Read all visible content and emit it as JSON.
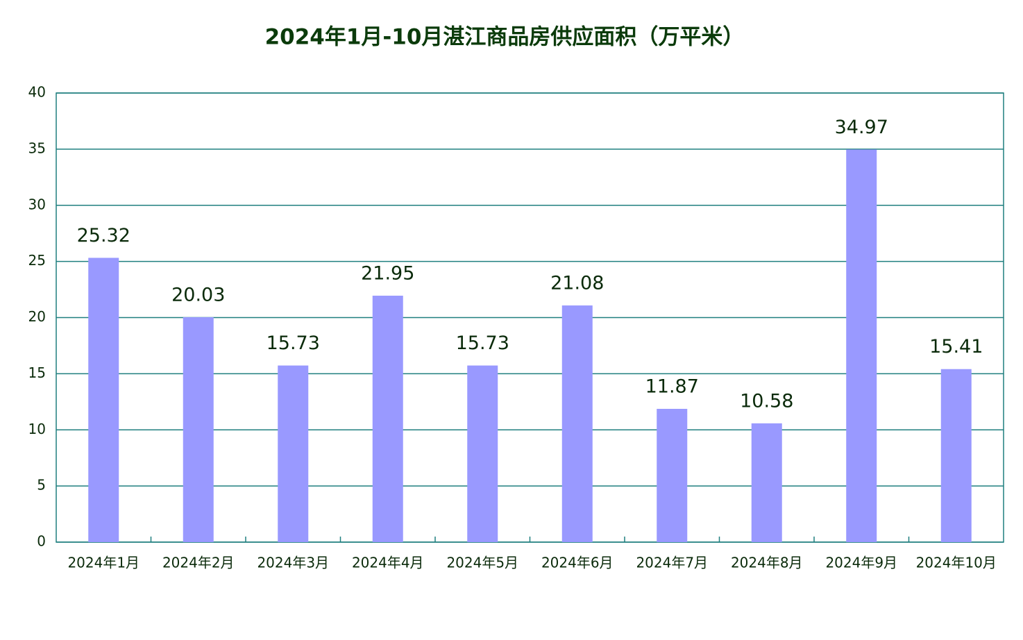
{
  "chart_data": {
    "type": "bar",
    "title": "2024年1月-10月湛江商品房供应面积（万平米）",
    "categories": [
      "2024年1月",
      "2024年2月",
      "2024年3月",
      "2024年4月",
      "2024年5月",
      "2024年6月",
      "2024年7月",
      "2024年8月",
      "2024年9月",
      "2024年10月"
    ],
    "values": [
      25.32,
      20.03,
      15.73,
      21.95,
      15.73,
      21.08,
      11.87,
      10.58,
      34.97,
      15.41
    ],
    "color": "#9999ff",
    "ylim": [
      0,
      40
    ],
    "yticks": [
      0,
      5,
      10,
      15,
      20,
      25,
      30,
      35,
      40
    ],
    "grid": true
  }
}
